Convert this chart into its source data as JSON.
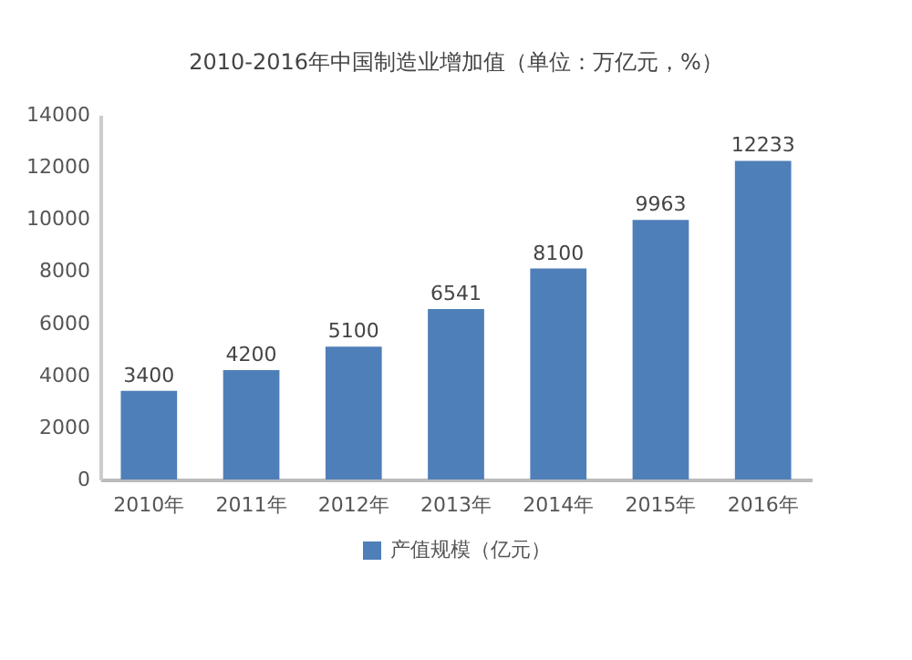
{
  "chart_data": {
    "type": "bar",
    "title": "2010-2016年中国制造业增加值（单位：万亿元，%）",
    "categories": [
      "2010年",
      "2011年",
      "2012年",
      "2013年",
      "2014年",
      "2015年",
      "2016年"
    ],
    "series": [
      {
        "name": "产值规模（亿元）",
        "color": "#4f7fb8",
        "values": [
          3400,
          4200,
          5100,
          6541,
          8100,
          9963,
          12233
        ]
      }
    ],
    "ylim": [
      0,
      14000
    ],
    "yticks": [
      0,
      2000,
      4000,
      6000,
      8000,
      10000,
      12000,
      14000
    ],
    "data_labels": true,
    "grid": false,
    "legend": "bottom"
  }
}
